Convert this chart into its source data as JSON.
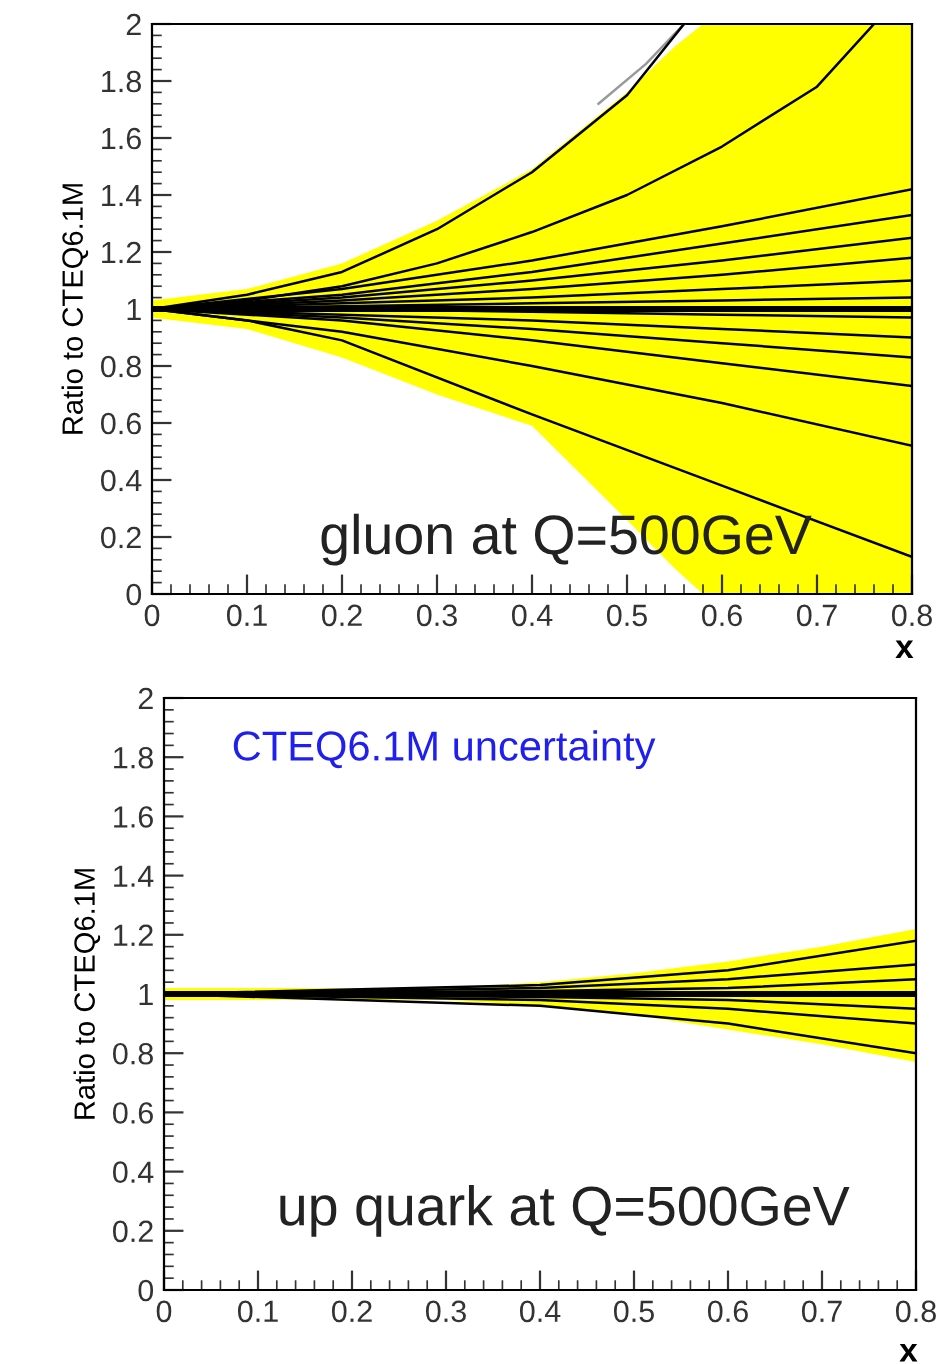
{
  "chart_data": [
    {
      "type": "line",
      "xlabel": "x",
      "ylabel": "Ratio to CTEQ6.1M",
      "annotations": [
        "gluon at Q=500GeV"
      ],
      "xlim": [
        0,
        0.8
      ],
      "ylim": [
        0,
        2
      ],
      "xticks": [
        0,
        0.1,
        0.2,
        0.3,
        0.4,
        0.5,
        0.6,
        0.7,
        0.8
      ],
      "yticks": [
        0,
        0.2,
        0.4,
        0.6,
        0.8,
        1,
        1.2,
        1.4,
        1.6,
        1.8,
        2
      ],
      "grid": false,
      "marker": "none",
      "line_style": "solid",
      "series": [
        {
          "color": "#000000",
          "x": [
            0,
            0.1,
            0.2,
            0.3,
            0.4,
            0.5,
            0.55,
            0.58,
            0.7,
            0.8
          ],
          "values": [
            1,
            1,
            1,
            1,
            1,
            1,
            1,
            1,
            1,
            1
          ],
          "lower": [
            0.97,
            0.93,
            0.83,
            0.7,
            0.59,
            0.26,
            0.09,
            0,
            0,
            0
          ],
          "upper": [
            1.03,
            1.07,
            1.16,
            1.31,
            1.49,
            1.76,
            1.92,
            2,
            2,
            2
          ]
        },
        {
          "color": "#999999",
          "x": [
            0.47,
            0.52,
            0.56
          ],
          "values": [
            1.72,
            1.86,
            2
          ]
        },
        {
          "color": "#000000",
          "x": [
            0,
            0.1,
            0.2,
            0.3,
            0.4,
            0.5,
            0.56
          ],
          "values": [
            1,
            1.05,
            1.13,
            1.28,
            1.48,
            1.75,
            2
          ]
        },
        {
          "color": "#000000",
          "x": [
            0,
            0.1,
            0.2,
            0.3,
            0.4,
            0.5,
            0.6,
            0.7,
            0.76
          ],
          "values": [
            1,
            1.03,
            1.08,
            1.16,
            1.27,
            1.4,
            1.57,
            1.78,
            2
          ]
        },
        {
          "color": "#000000",
          "x": [
            0,
            0.2,
            0.4,
            0.6,
            0.8
          ],
          "values": [
            1,
            1.07,
            1.17,
            1.29,
            1.42
          ]
        },
        {
          "color": "#000000",
          "x": [
            0,
            0.2,
            0.4,
            0.6,
            0.8
          ],
          "values": [
            1,
            1.05,
            1.13,
            1.23,
            1.33
          ]
        },
        {
          "color": "#000000",
          "x": [
            0,
            0.2,
            0.4,
            0.6,
            0.8
          ],
          "values": [
            1,
            1.04,
            1.1,
            1.17,
            1.25
          ]
        },
        {
          "color": "#000000",
          "x": [
            0,
            0.2,
            0.4,
            0.6,
            0.8
          ],
          "values": [
            1,
            1.03,
            1.07,
            1.12,
            1.18
          ]
        },
        {
          "color": "#000000",
          "x": [
            0,
            0.2,
            0.4,
            0.6,
            0.8
          ],
          "values": [
            1,
            1.02,
            1.04,
            1.07,
            1.1
          ]
        },
        {
          "color": "#000000",
          "x": [
            0,
            0.2,
            0.4,
            0.6,
            0.8
          ],
          "values": [
            1,
            1.01,
            1.02,
            1.03,
            1.04
          ]
        },
        {
          "color": "#000000",
          "x": [
            0,
            0.2,
            0.4,
            0.6,
            0.8
          ],
          "values": [
            1,
            1,
            0.99,
            0.98,
            0.97
          ]
        },
        {
          "color": "#000000",
          "x": [
            0,
            0.2,
            0.4,
            0.6,
            0.8
          ],
          "values": [
            1,
            0.98,
            0.96,
            0.93,
            0.9
          ]
        },
        {
          "color": "#000000",
          "x": [
            0,
            0.2,
            0.4,
            0.6,
            0.8
          ],
          "values": [
            1,
            0.97,
            0.93,
            0.88,
            0.83
          ]
        },
        {
          "color": "#000000",
          "x": [
            0,
            0.2,
            0.4,
            0.6,
            0.8
          ],
          "values": [
            1,
            0.96,
            0.89,
            0.81,
            0.73
          ]
        },
        {
          "color": "#000000",
          "x": [
            0,
            0.2,
            0.4,
            0.6,
            0.8
          ],
          "values": [
            1,
            0.92,
            0.8,
            0.67,
            0.52
          ]
        },
        {
          "color": "#000000",
          "x": [
            0,
            0.1,
            0.2,
            0.4,
            0.6,
            0.8
          ],
          "values": [
            1,
            0.96,
            0.89,
            0.63,
            0.38,
            0.13
          ]
        }
      ]
    },
    {
      "type": "line",
      "xlabel": "x",
      "ylabel": "Ratio to CTEQ6.1M",
      "annotations": [
        "CTEQ6.1M uncertainty",
        "up quark at Q=500GeV"
      ],
      "xlim": [
        0,
        0.8
      ],
      "ylim": [
        0,
        2
      ],
      "xticks": [
        0,
        0.1,
        0.2,
        0.3,
        0.4,
        0.5,
        0.6,
        0.7,
        0.8
      ],
      "yticks": [
        0,
        0.2,
        0.4,
        0.6,
        0.8,
        1,
        1.2,
        1.4,
        1.6,
        1.8,
        2
      ],
      "grid": false,
      "marker": "none",
      "line_style": "solid",
      "series": [
        {
          "color": "#000000",
          "x": [
            0,
            0.3,
            0.4,
            0.5,
            0.6,
            0.7,
            0.8
          ],
          "values": [
            1,
            1,
            1,
            1,
            1,
            1,
            1
          ],
          "lower": [
            0.98,
            0.98,
            0.96,
            0.93,
            0.88,
            0.83,
            0.77
          ],
          "upper": [
            1.02,
            1.02,
            1.04,
            1.07,
            1.11,
            1.16,
            1.22
          ]
        },
        {
          "color": "#000000",
          "x": [
            0,
            0.4,
            0.6,
            0.8
          ],
          "values": [
            1,
            1.03,
            1.08,
            1.18
          ]
        },
        {
          "color": "#000000",
          "x": [
            0,
            0.4,
            0.6,
            0.8
          ],
          "values": [
            1,
            1.02,
            1.05,
            1.1
          ]
        },
        {
          "color": "#000000",
          "x": [
            0,
            0.4,
            0.6,
            0.8
          ],
          "values": [
            1,
            1.01,
            1.02,
            1.05
          ]
        },
        {
          "color": "#000000",
          "x": [
            0,
            0.4,
            0.6,
            0.8
          ],
          "values": [
            1,
            0.99,
            0.98,
            0.95
          ]
        },
        {
          "color": "#000000",
          "x": [
            0,
            0.4,
            0.6,
            0.8
          ],
          "values": [
            1,
            0.98,
            0.95,
            0.9
          ]
        },
        {
          "color": "#000000",
          "x": [
            0,
            0.4,
            0.6,
            0.8
          ],
          "values": [
            1,
            0.96,
            0.9,
            0.8
          ]
        }
      ]
    }
  ]
}
